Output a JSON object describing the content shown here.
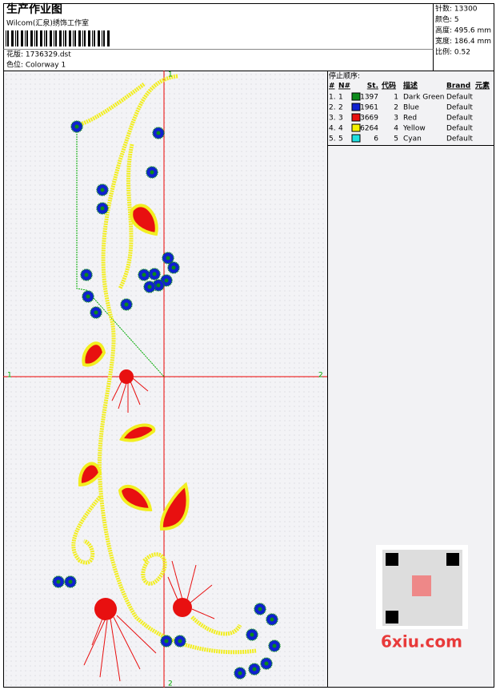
{
  "header": {
    "title": "生产作业图",
    "studio": "Wilcom(汇泉)绣饰工作室",
    "design": "花版: 1736329.dst",
    "colorway": "色位: Colorway 1"
  },
  "info": [
    "针数: 13300",
    "颜色: 5",
    "高度: 495.6 mm",
    "宽度: 186.4 mm",
    "比例: 0.52"
  ],
  "axis_marks": {
    "top": "1",
    "bottom": "2",
    "left": "1",
    "right": "2"
  },
  "stop_sequence": {
    "title": "停止顺序:",
    "columns": [
      "#",
      "N#",
      "St.",
      "代码",
      "描述",
      "Brand",
      "元素"
    ],
    "rows": [
      {
        "index": "1.",
        "number": "1",
        "color": "#0b8a1a",
        "stitches": "1397",
        "code": "1",
        "description": "Dark Green",
        "brand": "Default"
      },
      {
        "index": "2.",
        "number": "2",
        "color": "#1020d0",
        "stitches": "1961",
        "code": "2",
        "description": "Blue",
        "brand": "Default"
      },
      {
        "index": "3.",
        "number": "3",
        "color": "#e81010",
        "stitches": "3669",
        "code": "3",
        "description": "Red",
        "brand": "Default"
      },
      {
        "index": "4.",
        "number": "4",
        "color": "#f4f000",
        "stitches": "6264",
        "code": "4",
        "description": "Yellow",
        "brand": "Default"
      },
      {
        "index": "5.",
        "number": "5",
        "color": "#20e0e0",
        "stitches": "6",
        "code": "5",
        "description": "Cyan",
        "brand": "Default"
      }
    ]
  },
  "watermark": "6xiu.com"
}
